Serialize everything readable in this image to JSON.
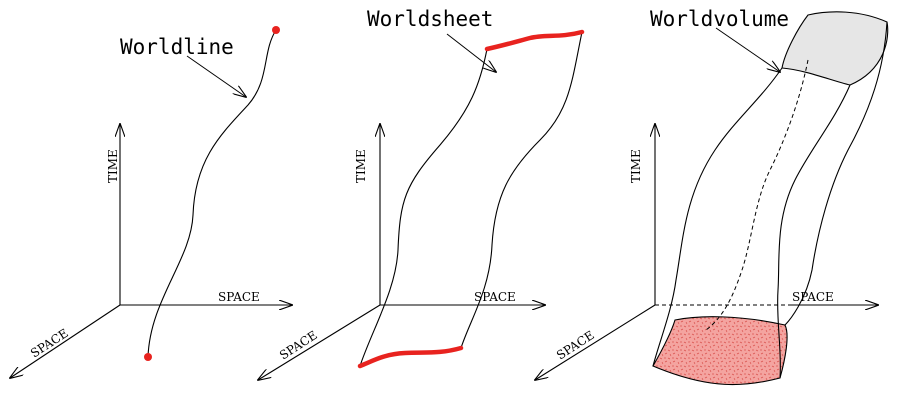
{
  "panels": {
    "worldline": {
      "title": "Worldline",
      "time_label": "TIME",
      "space_x_label": "SPACE",
      "space_z_label": "SPACE"
    },
    "worldsheet": {
      "title": "Worldsheet",
      "time_label": "TIME",
      "space_x_label": "SPACE",
      "space_z_label": "SPACE"
    },
    "worldvolume": {
      "title": "Worldvolume",
      "time_label": "TIME",
      "space_x_label": "SPACE",
      "space_z_label": "SPACE"
    }
  },
  "colors": {
    "accent_red": "#e8231f",
    "volume_top_fill": "#e6e6e6",
    "volume_bottom_fill": "#f4a4a0"
  }
}
